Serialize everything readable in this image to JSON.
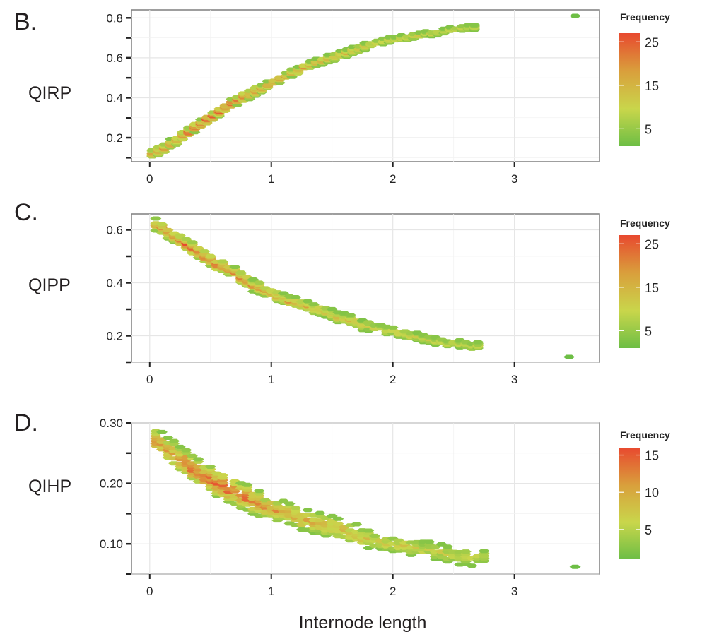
{
  "figure": {
    "xlabel": "Internode length"
  },
  "chart_data": [
    {
      "panel": "B.",
      "type": "heatmap",
      "ylabel": "QIRP",
      "xticks": [
        "0",
        "1",
        "2",
        "3"
      ],
      "yticks": [
        "0.2",
        "0.4",
        "0.6",
        "0.8"
      ],
      "xlim": [
        -0.15,
        3.7
      ],
      "ylim": [
        0.08,
        0.84
      ],
      "legend": {
        "title": "Frequency",
        "ticks": [
          "5",
          "15",
          "25"
        ],
        "range": [
          1,
          27
        ],
        "colors": [
          "#6dbe45",
          "#c9d64b",
          "#d9a03c",
          "#e8492f"
        ]
      },
      "trend": [
        [
          0.02,
          0.12
        ],
        [
          0.1,
          0.14
        ],
        [
          0.2,
          0.18
        ],
        [
          0.3,
          0.22
        ],
        [
          0.4,
          0.26
        ],
        [
          0.5,
          0.3
        ],
        [
          0.6,
          0.34
        ],
        [
          0.7,
          0.38
        ],
        [
          0.8,
          0.41
        ],
        [
          0.9,
          0.44
        ],
        [
          1.0,
          0.47
        ],
        [
          1.1,
          0.5
        ],
        [
          1.2,
          0.53
        ],
        [
          1.3,
          0.56
        ],
        [
          1.4,
          0.58
        ],
        [
          1.5,
          0.6
        ],
        [
          1.6,
          0.62
        ],
        [
          1.7,
          0.64
        ],
        [
          1.8,
          0.66
        ],
        [
          1.9,
          0.68
        ],
        [
          2.0,
          0.69
        ],
        [
          2.1,
          0.7
        ],
        [
          2.2,
          0.71
        ],
        [
          2.3,
          0.72
        ],
        [
          2.4,
          0.73
        ],
        [
          2.5,
          0.74
        ],
        [
          2.6,
          0.75
        ],
        [
          2.7,
          0.75
        ]
      ],
      "spread": 0.05,
      "peak_x": [
        0.3,
        0.8
      ],
      "outlier": [
        [
          3.5,
          0.81
        ]
      ],
      "seed": 11
    },
    {
      "panel": "C.",
      "type": "heatmap",
      "ylabel": "QIPP",
      "xticks": [
        "0",
        "1",
        "2",
        "3"
      ],
      "yticks": [
        "0.2",
        "0.4",
        "0.6"
      ],
      "xlim": [
        -0.15,
        3.7
      ],
      "ylim": [
        0.1,
        0.66
      ],
      "legend": {
        "title": "Frequency",
        "ticks": [
          "5",
          "15",
          "25"
        ],
        "range": [
          1,
          27
        ],
        "colors": [
          "#6dbe45",
          "#c9d64b",
          "#d9a03c",
          "#e8492f"
        ]
      },
      "trend": [
        [
          0.05,
          0.62
        ],
        [
          0.15,
          0.59
        ],
        [
          0.25,
          0.56
        ],
        [
          0.35,
          0.53
        ],
        [
          0.45,
          0.5
        ],
        [
          0.55,
          0.47
        ],
        [
          0.65,
          0.45
        ],
        [
          0.75,
          0.42
        ],
        [
          0.85,
          0.39
        ],
        [
          0.95,
          0.37
        ],
        [
          1.05,
          0.35
        ],
        [
          1.15,
          0.33
        ],
        [
          1.25,
          0.32
        ],
        [
          1.35,
          0.3
        ],
        [
          1.45,
          0.29
        ],
        [
          1.55,
          0.27
        ],
        [
          1.65,
          0.26
        ],
        [
          1.75,
          0.24
        ],
        [
          1.85,
          0.23
        ],
        [
          1.95,
          0.22
        ],
        [
          2.05,
          0.21
        ],
        [
          2.15,
          0.2
        ],
        [
          2.25,
          0.19
        ],
        [
          2.35,
          0.18
        ],
        [
          2.45,
          0.17
        ],
        [
          2.55,
          0.17
        ],
        [
          2.65,
          0.16
        ],
        [
          2.72,
          0.16
        ]
      ],
      "spread": 0.05,
      "peak_x": [
        0.3,
        0.6
      ],
      "outlier": [
        [
          3.45,
          0.12
        ]
      ],
      "seed": 23
    },
    {
      "panel": "D.",
      "type": "heatmap",
      "ylabel": "QIHP",
      "xticks": [
        "0",
        "1",
        "2",
        "3"
      ],
      "yticks": [
        "0.10",
        "0.20",
        "0.30"
      ],
      "xlim": [
        -0.15,
        3.7
      ],
      "ylim": [
        0.05,
        0.3
      ],
      "legend": {
        "title": "Frequency",
        "ticks": [
          "5",
          "10",
          "15"
        ],
        "range": [
          1,
          16
        ],
        "colors": [
          "#6dbe45",
          "#c9d64b",
          "#d9a03c",
          "#e8492f"
        ]
      },
      "trend": [
        [
          0.05,
          0.27
        ],
        [
          0.15,
          0.255
        ],
        [
          0.25,
          0.24
        ],
        [
          0.35,
          0.225
        ],
        [
          0.45,
          0.21
        ],
        [
          0.55,
          0.2
        ],
        [
          0.65,
          0.19
        ],
        [
          0.75,
          0.18
        ],
        [
          0.85,
          0.17
        ],
        [
          0.95,
          0.16
        ],
        [
          1.05,
          0.155
        ],
        [
          1.15,
          0.15
        ],
        [
          1.25,
          0.14
        ],
        [
          1.35,
          0.135
        ],
        [
          1.45,
          0.13
        ],
        [
          1.55,
          0.125
        ],
        [
          1.65,
          0.118
        ],
        [
          1.75,
          0.11
        ],
        [
          1.85,
          0.105
        ],
        [
          1.95,
          0.1
        ],
        [
          2.05,
          0.097
        ],
        [
          2.15,
          0.094
        ],
        [
          2.25,
          0.091
        ],
        [
          2.35,
          0.087
        ],
        [
          2.45,
          0.083
        ],
        [
          2.55,
          0.078
        ],
        [
          2.65,
          0.076
        ],
        [
          2.75,
          0.08
        ]
      ],
      "spread": 0.045,
      "peak_x": [
        0.3,
        0.85
      ],
      "outlier": [
        [
          3.5,
          0.062
        ]
      ],
      "seed": 37
    }
  ]
}
